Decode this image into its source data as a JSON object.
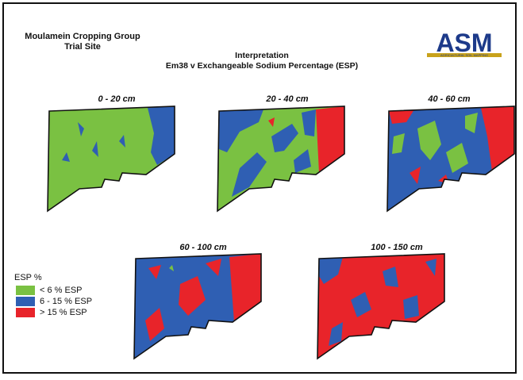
{
  "header": {
    "group_line1": "Moulamein Cropping Group",
    "group_line2": "Trial Site",
    "title_line1": "Interpretation",
    "title_line2": "Em38 v Exchangeable Sodium Percentage (ESP)",
    "logo_text": "ASM",
    "logo_subtext": "AGRICULTURAL SOIL MAPPING"
  },
  "colors": {
    "low": "#7ac142",
    "mid": "#2f5fb3",
    "high": "#e8242a",
    "outline": "#111111"
  },
  "panels": [
    {
      "id": "p1",
      "label": "0 - 20 cm",
      "dominant": "low",
      "secondary": "mid",
      "accent": "high"
    },
    {
      "id": "p2",
      "label": "20 - 40 cm",
      "dominant": "low",
      "secondary": "mid",
      "accent": "high"
    },
    {
      "id": "p3",
      "label": "40 - 60 cm",
      "dominant": "mid",
      "secondary": "low",
      "accent": "high"
    },
    {
      "id": "p4",
      "label": "60 - 100 cm",
      "dominant": "mid",
      "secondary": "high",
      "accent": "low"
    },
    {
      "id": "p5",
      "label": "100 - 150 cm",
      "dominant": "high",
      "secondary": "mid",
      "accent": "low"
    }
  ],
  "legend": {
    "title": "ESP %",
    "items": [
      {
        "label": "< 6 % ESP",
        "color": "#7ac142"
      },
      {
        "label": "6 - 15 % ESP",
        "color": "#2f5fb3"
      },
      {
        "label": "> 15 % ESP",
        "color": "#e8242a"
      }
    ]
  }
}
